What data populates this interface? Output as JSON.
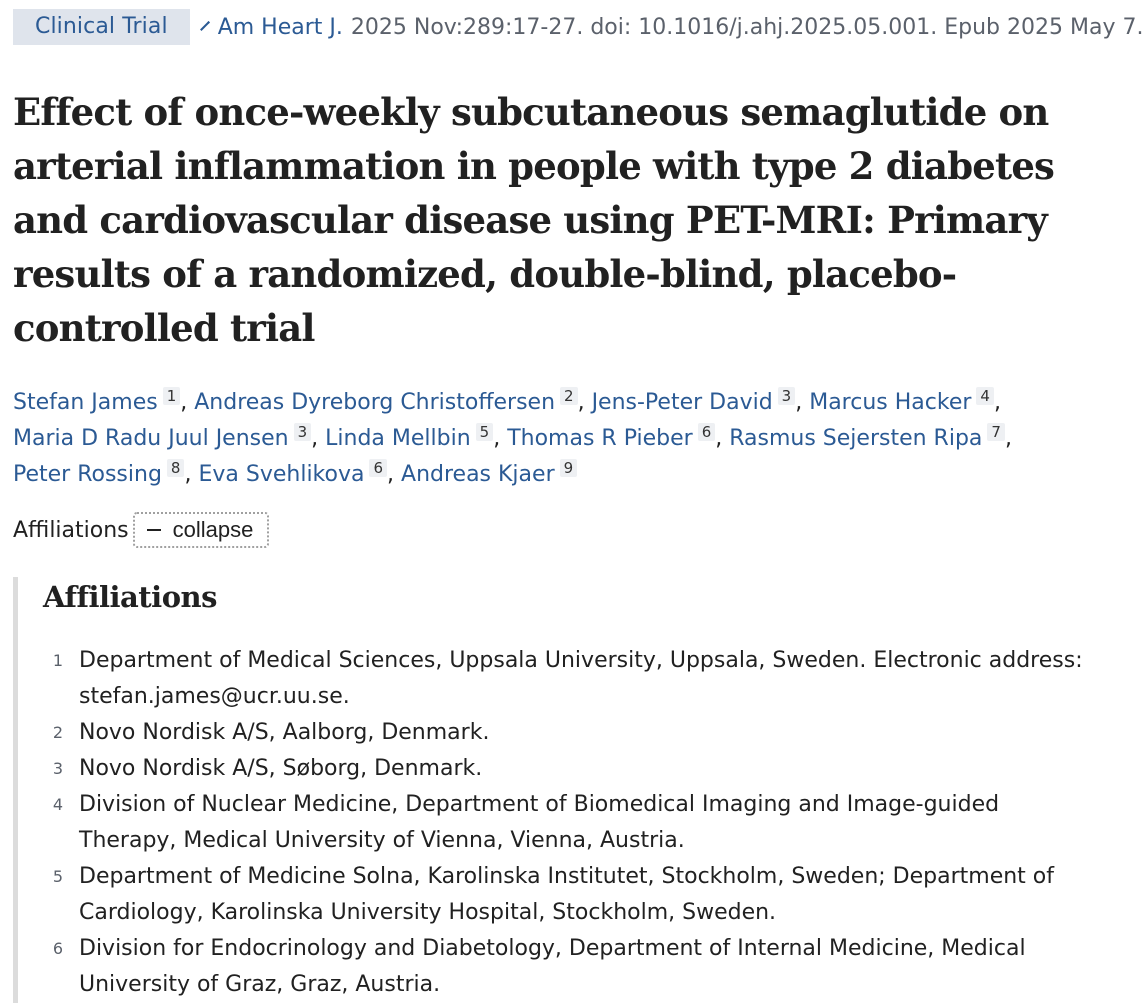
{
  "article_type": "Clinical Trial",
  "journal": "Am Heart J.",
  "citation": "2025 Nov:289:17-27. doi: 10.1016/j.ahj.2025.05.001. Epub 2025 May 7.",
  "title": "Effect of once-weekly subcutaneous semaglutide on arterial inflammation in people with type 2 diabetes and cardiovascular disease using PET-MRI: Primary results of a randomized, double-blind, placebo-controlled trial",
  "authors": [
    {
      "name": "Stefan James",
      "aff": "1"
    },
    {
      "name": "Andreas Dyreborg Christoffersen",
      "aff": "2"
    },
    {
      "name": "Jens-Peter David",
      "aff": "3"
    },
    {
      "name": "Marcus Hacker",
      "aff": "4"
    },
    {
      "name": "Maria D Radu Juul Jensen",
      "aff": "3"
    },
    {
      "name": "Linda Mellbin",
      "aff": "5"
    },
    {
      "name": "Thomas R Pieber",
      "aff": "6"
    },
    {
      "name": "Rasmus Sejersten Ripa",
      "aff": "7"
    },
    {
      "name": "Peter Rossing",
      "aff": "8"
    },
    {
      "name": "Eva Svehlikova",
      "aff": "6"
    },
    {
      "name": "Andreas Kjaer",
      "aff": "9"
    }
  ],
  "affiliations_toggle": {
    "label": "Affiliations",
    "button_label": "collapse"
  },
  "affiliations_heading": "Affiliations",
  "affiliations": [
    {
      "num": "1",
      "text": "Department of Medical Sciences, Uppsala University, Uppsala, Sweden. Electronic address: stefan.james@ucr.uu.se."
    },
    {
      "num": "2",
      "text": "Novo Nordisk A/S, Aalborg, Denmark."
    },
    {
      "num": "3",
      "text": "Novo Nordisk A/S, Søborg, Denmark."
    },
    {
      "num": "4",
      "text": "Division of Nuclear Medicine, Department of Biomedical Imaging and Image-guided Therapy, Medical University of Vienna, Vienna, Austria."
    },
    {
      "num": "5",
      "text": "Department of Medicine Solna, Karolinska Institutet, Stockholm, Sweden; Department of Cardiology, Karolinska University Hospital, Stockholm, Sweden."
    },
    {
      "num": "6",
      "text": "Division for Endocrinology and Diabetology, Department of Internal Medicine, Medical University of Graz, Graz, Austria."
    }
  ],
  "colors": {
    "link": "#2b5a94",
    "badge_bg": "#dfe4ec",
    "muted": "#5b616b"
  }
}
